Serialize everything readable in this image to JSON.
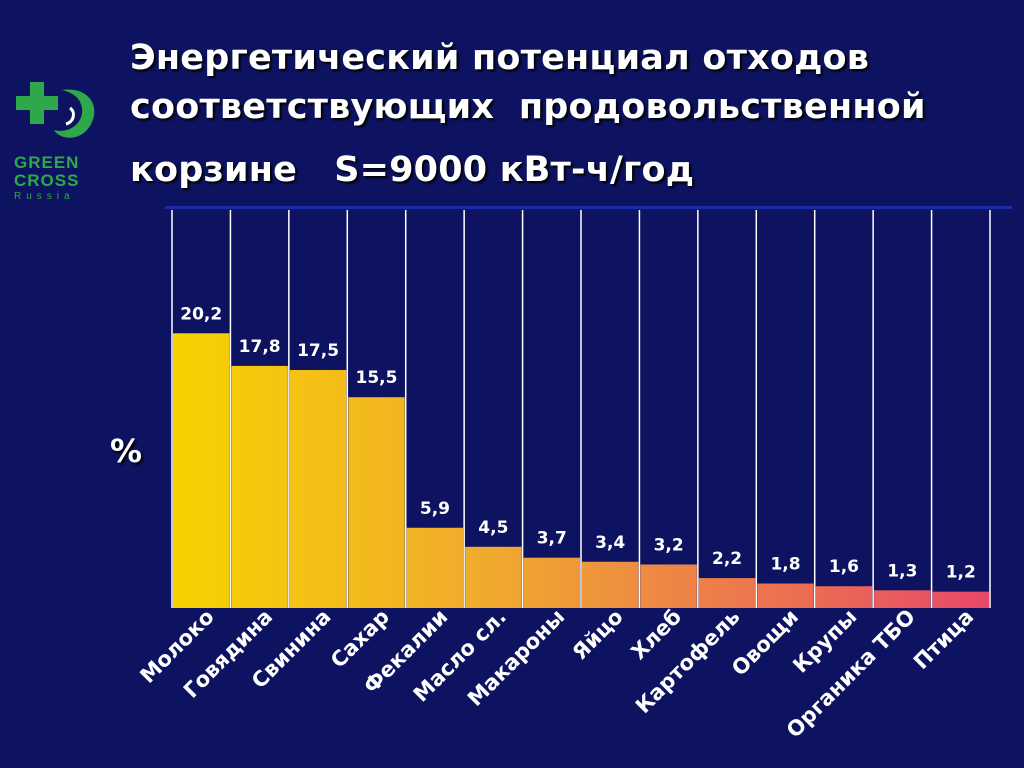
{
  "slide": {
    "title_lines": [
      "Энергетический потенциал отходов",
      "соответствующих  продовольственной",
      "корзине   S=9000 кВт-ч/год"
    ],
    "logo": {
      "line1": "GREEN",
      "line2": "CROSS",
      "line3": "Russia"
    }
  },
  "colors": {
    "background": "#0d1360",
    "text": "#ffffff",
    "gridline": "#ffffff",
    "bar_start": "#f7d300",
    "bar_end": "#e8486a",
    "logo_green": "#2ea84a"
  },
  "chart_data": {
    "type": "bar",
    "title": "Энергетический потенциал отходов соответствующих  продовольственной корзине   S=9000 кВт-ч/год",
    "xlabel": "",
    "ylabel": "%",
    "ylim": [
      0,
      30
    ],
    "grid": "vertical lines between categories",
    "legend": "none",
    "categories": [
      "Молоко",
      "Говядина",
      "Свинина",
      "Сахар",
      "Фекалии",
      "Масло сл.",
      "Макароны",
      "Яйцо",
      "Хлеб",
      "Картофель",
      "Овощи",
      "Крупы",
      "Органика ТБО",
      "Птица"
    ],
    "values": [
      20.2,
      17.8,
      17.5,
      15.5,
      5.9,
      4.5,
      3.7,
      3.4,
      3.2,
      2.2,
      1.8,
      1.6,
      1.3,
      1.2
    ],
    "data_labels": [
      "20,2",
      "17,8",
      "17,5",
      "15,5",
      "5,9",
      "4,5",
      "3,7",
      "3,4",
      "3,2",
      "2,2",
      "1,8",
      "1,6",
      "1,3",
      "1,2"
    ]
  }
}
